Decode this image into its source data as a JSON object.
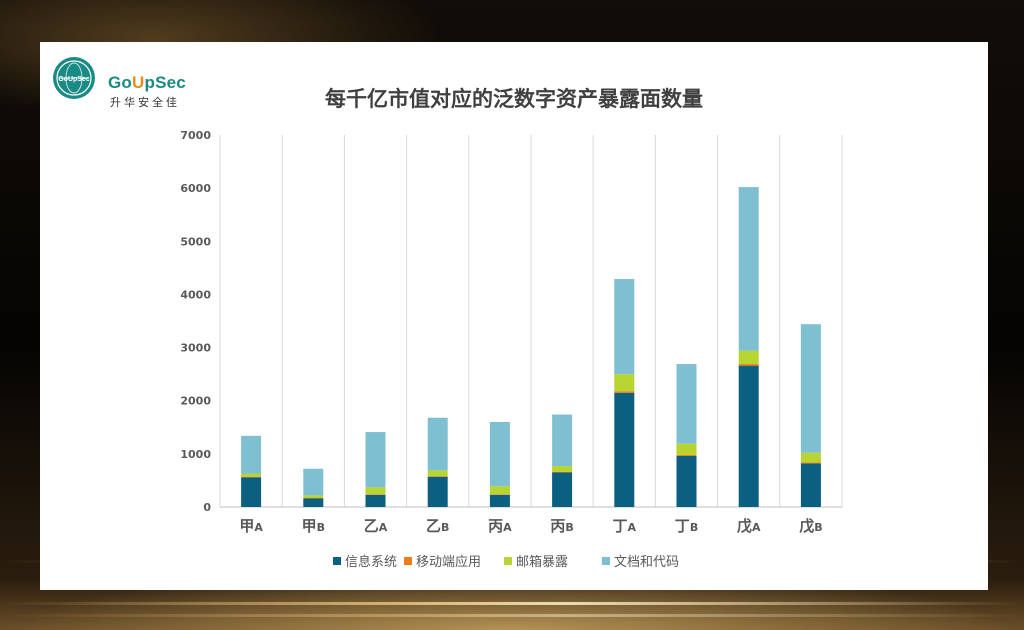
{
  "logo": {
    "brand_prefix": "Go",
    "brand_highlight": "U",
    "brand_suffix": "pSec",
    "brand_cn": "升华安全佳",
    "seal_text": "GoUpSec",
    "icon": "globe-seal-icon"
  },
  "colors": {
    "info_system": "#0b5f80",
    "mobile_app": "#f07c1a",
    "email": "#b8d431",
    "docs_code": "#7ebfd1",
    "grid": "#d9d9d9",
    "axis_text": "#595959",
    "title": "#404040",
    "brand": "#1a8a84"
  },
  "chart_data": {
    "type": "bar",
    "stacked": true,
    "title": "每千亿市值对应的泛数字资产暴露面数量",
    "categories": [
      {
        "main": "甲",
        "sub": "A"
      },
      {
        "main": "甲",
        "sub": "B"
      },
      {
        "main": "乙",
        "sub": "A"
      },
      {
        "main": "乙",
        "sub": "B"
      },
      {
        "main": "丙",
        "sub": "A"
      },
      {
        "main": "丙",
        "sub": "B"
      },
      {
        "main": "丁",
        "sub": "A"
      },
      {
        "main": "丁",
        "sub": "B"
      },
      {
        "main": "戊",
        "sub": "A"
      },
      {
        "main": "戊",
        "sub": "B"
      }
    ],
    "series": [
      {
        "name": "信息系统",
        "values": [
          560,
          160,
          230,
          570,
          230,
          650,
          2150,
          960,
          2660,
          820
        ]
      },
      {
        "name": "移动端应用",
        "values": [
          10,
          10,
          10,
          10,
          10,
          10,
          30,
          20,
          30,
          20
        ]
      },
      {
        "name": "邮箱暴露",
        "values": [
          60,
          50,
          130,
          110,
          150,
          110,
          320,
          210,
          250,
          180
        ]
      },
      {
        "name": "文档和代码",
        "values": [
          710,
          500,
          1040,
          990,
          1210,
          970,
          1790,
          1500,
          3080,
          2420
        ]
      }
    ],
    "yticks": [
      0,
      1000,
      2000,
      3000,
      4000,
      5000,
      6000,
      7000
    ],
    "ylim": [
      0,
      7000
    ],
    "grid": "vertical category separators",
    "legend": "bottom"
  }
}
